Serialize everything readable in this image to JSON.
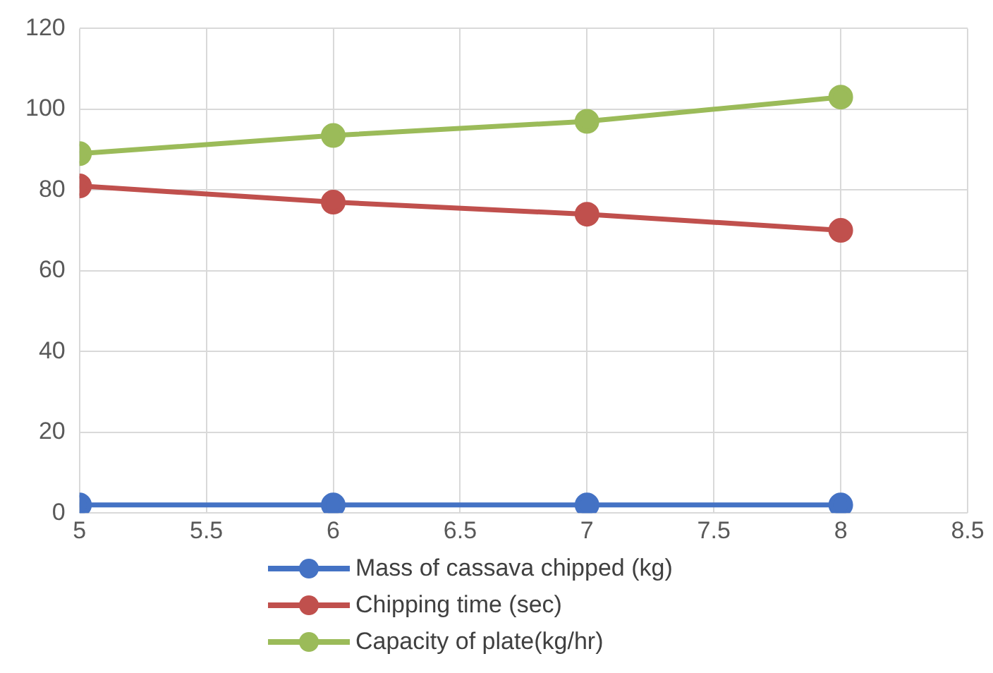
{
  "chart_data": {
    "type": "line",
    "x": [
      5,
      6,
      7,
      8
    ],
    "series": [
      {
        "name": "Mass of cassava chipped (kg)",
        "color": "#4472c4",
        "values": [
          2,
          2,
          2,
          2
        ]
      },
      {
        "name": "Chipping time (sec)",
        "color": "#c0504d",
        "values": [
          81,
          77,
          74,
          70
        ]
      },
      {
        "name": "Capacity of plate(kg/hr)",
        "color": "#9bbb59",
        "values": [
          89,
          93.5,
          97,
          103
        ]
      }
    ],
    "xlim": [
      5,
      8.5
    ],
    "xticks": [
      5,
      5.5,
      6,
      6.5,
      7,
      7.5,
      8,
      8.5
    ],
    "ylim": [
      0,
      120
    ],
    "yticks": [
      0,
      20,
      40,
      60,
      80,
      100,
      120
    ],
    "grid": true,
    "legend": "bottom",
    "marker": "circle",
    "line_style": "solid"
  }
}
